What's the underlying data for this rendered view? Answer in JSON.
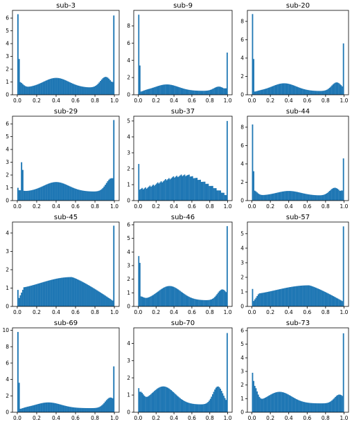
{
  "chart_data": [
    {
      "type": "bar",
      "title": "sub-3",
      "ylim": [
        0,
        6.6
      ],
      "yticks": [
        0,
        1,
        2,
        3,
        4,
        5,
        6
      ],
      "xticks": [
        "0.0",
        "0.2",
        "0.4",
        "0.6",
        "0.8",
        "1.0"
      ],
      "shape": {
        "mode": "bimodal",
        "spike_left": 6.3,
        "spike_left2": 2.8,
        "spike_right": 6.2,
        "base": 0.55,
        "start": 1.0,
        "peak1": [
          0.4,
          1.32
        ],
        "peak2": [
          0.91,
          1.4
        ],
        "end": 1.0
      }
    },
    {
      "type": "bar",
      "title": "sub-9",
      "ylim": [
        0,
        9.8
      ],
      "yticks": [
        0,
        2,
        4,
        6,
        8
      ],
      "xticks": [
        "0.0",
        "0.2",
        "0.4",
        "0.6",
        "0.8",
        "1.0"
      ],
      "shape": {
        "mode": "bimodal",
        "spike_left": 9.3,
        "spike_left2": 3.4,
        "spike_right": 4.9,
        "base": 0.45,
        "start": 0.3,
        "peak1": [
          0.32,
          1.2
        ],
        "peak2": [
          0.9,
          0.95
        ],
        "end": 0.75
      }
    },
    {
      "type": "bar",
      "title": "sub-20",
      "ylim": [
        0,
        9.2
      ],
      "yticks": [
        0,
        2,
        4,
        6,
        8
      ],
      "xticks": [
        "0.0",
        "0.2",
        "0.4",
        "0.6",
        "0.8",
        "1.0"
      ],
      "shape": {
        "mode": "bimodal",
        "spike_left": 8.8,
        "spike_left2": 3.9,
        "spike_right": 5.6,
        "base": 0.4,
        "start": 0.3,
        "peak1": [
          0.35,
          1.25
        ],
        "peak2": [
          0.92,
          1.35
        ],
        "end": 0.9
      }
    },
    {
      "type": "bar",
      "title": "sub-29",
      "ylim": [
        0,
        6.6
      ],
      "yticks": [
        0,
        1,
        2,
        3,
        4,
        5,
        6
      ],
      "xticks": [
        "0.0",
        "0.2",
        "0.4",
        "0.6",
        "0.8",
        "1.0"
      ],
      "shape": {
        "mode": "bimodal",
        "spike_left": 1.0,
        "spike_left2": 0.8,
        "extra_spikes": [
          [
            0.04,
            3.0
          ],
          [
            0.05,
            2.4
          ]
        ],
        "spike_right": 6.3,
        "base": 0.7,
        "start": 0.8,
        "peak1": [
          0.4,
          1.45
        ],
        "peak2": [
          0.97,
          1.75
        ],
        "end": 1.75
      }
    },
    {
      "type": "bar",
      "title": "sub-37",
      "ylim": [
        0,
        5.3
      ],
      "yticks": [
        0,
        1,
        2,
        3,
        4,
        5
      ],
      "xticks": [
        "0.0",
        "0.2",
        "0.4",
        "0.6",
        "0.8",
        "1.0"
      ],
      "shape": {
        "mode": "unimodal",
        "spike_left": 2.3,
        "spike_left2": 0.4,
        "spike_right": 5.0,
        "start": 0.7,
        "peak1": [
          0.55,
          1.6
        ],
        "end": 0.3,
        "jitter": 0.12
      }
    },
    {
      "type": "bar",
      "title": "sub-44",
      "ylim": [
        0,
        9.2
      ],
      "yticks": [
        0,
        2,
        4,
        6,
        8
      ],
      "xticks": [
        "0.0",
        "0.2",
        "0.4",
        "0.6",
        "0.8",
        "1.0"
      ],
      "shape": {
        "mode": "bimodal",
        "spike_left": 8.3,
        "spike_left2": 3.2,
        "spike_right": 4.6,
        "base": 0.55,
        "start": 1.1,
        "peak1": [
          0.4,
          1.05
        ],
        "peak2": [
          0.9,
          1.4
        ],
        "end": 1.1
      }
    },
    {
      "type": "bar",
      "title": "sub-45",
      "ylim": [
        0,
        4.6
      ],
      "yticks": [
        0,
        1,
        2,
        3,
        4
      ],
      "xticks": [
        "0.0",
        "0.2",
        "0.4",
        "0.6",
        "0.8",
        "1.0"
      ],
      "shape": {
        "mode": "unimodal",
        "spike_left": 0.9,
        "spike_left2": 0.2,
        "spike_right": 4.4,
        "start": 1.0,
        "peak1": [
          0.56,
          1.6
        ],
        "end": 0.25,
        "ramp": 0.06
      }
    },
    {
      "type": "bar",
      "title": "sub-46",
      "ylim": [
        0,
        6.2
      ],
      "yticks": [
        0,
        1,
        2,
        3,
        4,
        5,
        6
      ],
      "xticks": [
        "0.0",
        "0.2",
        "0.4",
        "0.6",
        "0.8",
        "1.0"
      ],
      "shape": {
        "mode": "bimodal",
        "spike_left": 3.7,
        "spike_left2": 3.2,
        "spike_right": 5.9,
        "base": 0.45,
        "start": 0.7,
        "peak1": [
          0.35,
          1.5
        ],
        "peak2": [
          0.94,
          1.25
        ],
        "end": 1.0
      }
    },
    {
      "type": "bar",
      "title": "sub-57",
      "ylim": [
        0,
        5.8
      ],
      "yticks": [
        0,
        1,
        2,
        3,
        4,
        5
      ],
      "xticks": [
        "0.0",
        "0.2",
        "0.4",
        "0.6",
        "0.8",
        "1.0"
      ],
      "shape": {
        "mode": "unimodal",
        "spike_left": 1.2,
        "spike_left2": 0.3,
        "spike_right": 5.5,
        "start": 0.85,
        "peak1": [
          0.62,
          1.45
        ],
        "end": 0.3,
        "ramp": 0.07
      }
    },
    {
      "type": "bar",
      "title": "sub-69",
      "ylim": [
        0,
        10.3
      ],
      "yticks": [
        0,
        2,
        4,
        6,
        8,
        10
      ],
      "xticks": [
        "0.0",
        "0.2",
        "0.4",
        "0.6",
        "0.8",
        "1.0"
      ],
      "shape": {
        "mode": "bimodal",
        "spike_left": 9.8,
        "spike_left2": 3.6,
        "spike_right": 5.6,
        "base": 0.5,
        "start": 0.35,
        "peak1": [
          0.32,
          1.2
        ],
        "peak2": [
          0.96,
          1.8
        ],
        "end": 1.3
      }
    },
    {
      "type": "bar",
      "title": "sub-70",
      "ylim": [
        0,
        4.9
      ],
      "yticks": [
        0,
        1,
        2,
        3,
        4
      ],
      "xticks": [
        "0.0",
        "0.2",
        "0.4",
        "0.6",
        "0.8",
        "1.0"
      ],
      "shape": {
        "mode": "bimodal",
        "spike_left": 1.4,
        "spike_left2": 0.9,
        "spike_right": 4.6,
        "base": 0.45,
        "start": 1.05,
        "peak1": [
          0.28,
          1.5
        ],
        "peak2": [
          0.89,
          1.5
        ],
        "end": 0.4
      }
    },
    {
      "type": "bar",
      "title": "sub-73",
      "ylim": [
        0,
        6.2
      ],
      "yticks": [
        0,
        1,
        2,
        3,
        4,
        5,
        6
      ],
      "xticks": [
        "0.0",
        "0.2",
        "0.4",
        "0.6",
        "0.8",
        "1.0"
      ],
      "shape": {
        "mode": "bimodal",
        "spike_left": 2.9,
        "spike_left2": 2.3,
        "spike_right": 5.8,
        "base": 0.65,
        "start": 1.9,
        "peak1": [
          0.3,
          1.5
        ],
        "peak2": [
          0.95,
          1.3
        ],
        "end": 1.0
      }
    }
  ],
  "colors": {
    "bar": "#1f77b4",
    "axis": "#000000"
  }
}
